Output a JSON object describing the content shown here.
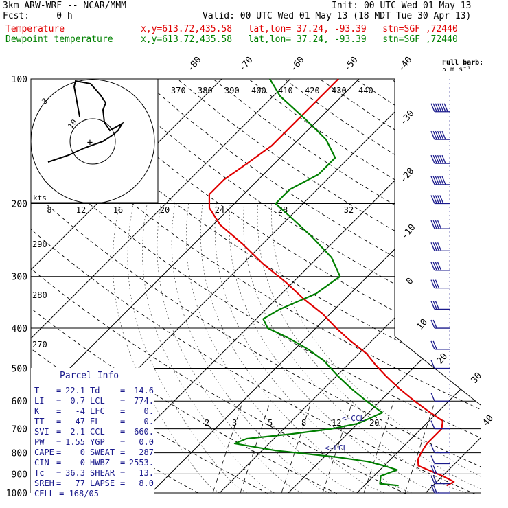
{
  "header": {
    "model": "3km ARW-WRF -- NCAR/MMM",
    "init": "Init: 00 UTC Wed 01 May 13",
    "fcst": "Fcst:     0 h",
    "valid": "Valid: 00 UTC Wed 01 May 13 (18 MDT Tue 30 Apr 13)",
    "temp_label": "Temperature",
    "temp_loc": "x,y=613.72,435.58   lat,lon= 37.24, -93.39   stn=SGF ,72440",
    "dew_label": "Dewpoint temperature",
    "dew_loc": "x,y=613.72,435.58   lat,lon= 37.24, -93.39   stn=SGF ,72440"
  },
  "barb_legend": {
    "line1": "Full barb:",
    "line2": "5 m s⁻¹"
  },
  "colors": {
    "temperature": "#e00000",
    "dewpoint": "#008000",
    "parcel_box": "#1a1a8c",
    "wind": "#1a1a8c"
  },
  "hodograph": {
    "ring_labels": [
      "3",
      "10"
    ],
    "kts_label": "kts",
    "speed_ticks": [
      "8",
      "12",
      "16",
      "20",
      "24",
      "28",
      "32"
    ],
    "center_marker": "+"
  },
  "theta_labels": [
    "370",
    "380",
    "390",
    "400",
    "410",
    "420",
    "430",
    "440"
  ],
  "theta_side_labels": [
    "290",
    "280",
    "270"
  ],
  "mixing_ratio_labels": [
    "2",
    "3",
    "5",
    "8",
    "12",
    "20"
  ],
  "ccl_label": "CCL",
  "lcl_label": "LCL",
  "parcel_info": {
    "title": "Parcel Info",
    "rows": [
      {
        "l1": "T",
        "v1": "22.1",
        "l2": "Td",
        "v2": "14.6"
      },
      {
        "l1": "LI",
        "v1": "0.7",
        "l2": "LCL",
        "v2": "774."
      },
      {
        "l1": "K",
        "v1": "-4",
        "l2": "LFC",
        "v2": "0."
      },
      {
        "l1": "TT",
        "v1": "47",
        "l2": "EL",
        "v2": "0."
      },
      {
        "l1": "SVI",
        "v1": "2.1",
        "l2": "CCL",
        "v2": "660."
      },
      {
        "l1": "PW",
        "v1": "1.55",
        "l2": "YGP",
        "v2": "0.0"
      },
      {
        "l1": "CAPE",
        "v1": "0",
        "l2": "SWEAT",
        "v2": "287"
      },
      {
        "l1": "CIN",
        "v1": "0",
        "l2": "HWBZ",
        "v2": "2553."
      },
      {
        "l1": "Tc",
        "v1": "36.3",
        "l2": "SHEAR",
        "v2": "13."
      },
      {
        "l1": "SREH",
        "v1": "77",
        "l2": "LAPSE",
        "v2": "8.0"
      }
    ],
    "cell": "CELL = 168/05"
  },
  "chart_data": {
    "type": "line",
    "title": "",
    "y_scale": "log-pressure",
    "pressure_levels": [
      100,
      200,
      300,
      400,
      500,
      600,
      700,
      800,
      900,
      1000
    ],
    "pressure_labels": [
      "100",
      "200",
      "300",
      "400",
      "500",
      "600",
      "700",
      "800",
      "900",
      "1000"
    ],
    "isotherm_labels": [
      "-80",
      "-70",
      "-60",
      "-50",
      "-40",
      "-30",
      "-20",
      "-10",
      "0",
      "10",
      "20",
      "30",
      "40"
    ],
    "series": [
      {
        "name": "Temperature",
        "pressure": [
          960,
          940,
          910,
          880,
          860,
          830,
          800,
          760,
          740,
          700,
          670,
          640,
          600,
          560,
          520,
          490,
          460,
          430,
          400,
          370,
          340,
          310,
          280,
          250,
          225,
          205,
          190,
          175,
          160,
          145,
          130,
          115,
          100
        ],
        "values": [
          22,
          22.5,
          20,
          17,
          15,
          14,
          13.5,
          13,
          13,
          13,
          12,
          9,
          5,
          1,
          -3,
          -6,
          -9,
          -13,
          -17,
          -21,
          -26,
          -31,
          -37,
          -43,
          -49,
          -53,
          -55,
          -55,
          -54,
          -53,
          -53,
          -53,
          -53
        ]
      },
      {
        "name": "Dewpoint temperature",
        "pressure": [
          960,
          950,
          910,
          880,
          860,
          840,
          820,
          790,
          760,
          740,
          720,
          700,
          680,
          660,
          640,
          600,
          560,
          520,
          480,
          450,
          420,
          400,
          380,
          360,
          330,
          300,
          270,
          240,
          215,
          200,
          185,
          170,
          155,
          140,
          125,
          110,
          100
        ],
        "values": [
          15,
          12,
          11,
          12.5,
          10,
          7,
          2,
          -8,
          -15,
          -14,
          -8,
          -3,
          0,
          1,
          2,
          -2,
          -6,
          -10,
          -14,
          -18,
          -23,
          -27,
          -29,
          -28,
          -25,
          -24,
          -28,
          -34,
          -40,
          -44,
          -44,
          -42,
          -42,
          -46,
          -52,
          -59,
          -63
        ]
      }
    ],
    "wind_barbs_kts": {
      "pressure": [
        120,
        140,
        160,
        180,
        200,
        230,
        260,
        290,
        320,
        360,
        400,
        450,
        500,
        600,
        700,
        800,
        850,
        900,
        950,
        1000
      ],
      "speed": [
        65,
        60,
        60,
        55,
        50,
        40,
        35,
        35,
        30,
        25,
        20,
        15,
        10,
        5,
        5,
        5,
        10,
        15,
        20,
        20
      ]
    }
  }
}
